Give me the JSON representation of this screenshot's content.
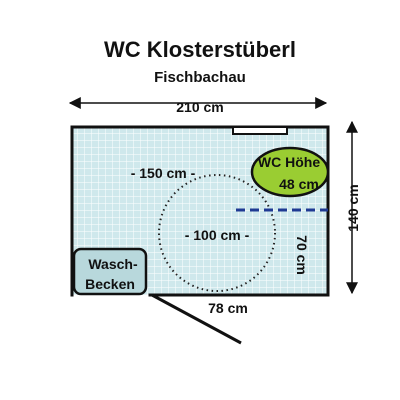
{
  "title": "WC Klosterstüberl",
  "subtitle": "Fischbachau",
  "dimensions": {
    "width_label": "210 cm",
    "depth_label": "140 cm",
    "free_space_label": "- 150 cm -",
    "turning_circle_label": "- 100 cm -",
    "side_clearance_label": "70 cm",
    "door_width_label": "78 cm"
  },
  "fixtures": {
    "wc_line1": "WC Höhe",
    "wc_line2": "48 cm",
    "sink_line1": "Wasch-",
    "sink_line2": "Becken"
  },
  "colors": {
    "floor_tile": "#cfe8ec",
    "tile_grid": "#ffffff",
    "wall": "#111111",
    "wc_fill": "#9acd32",
    "sink_fill": "#b8d8dc",
    "grab_bar": "#1f3a93"
  }
}
